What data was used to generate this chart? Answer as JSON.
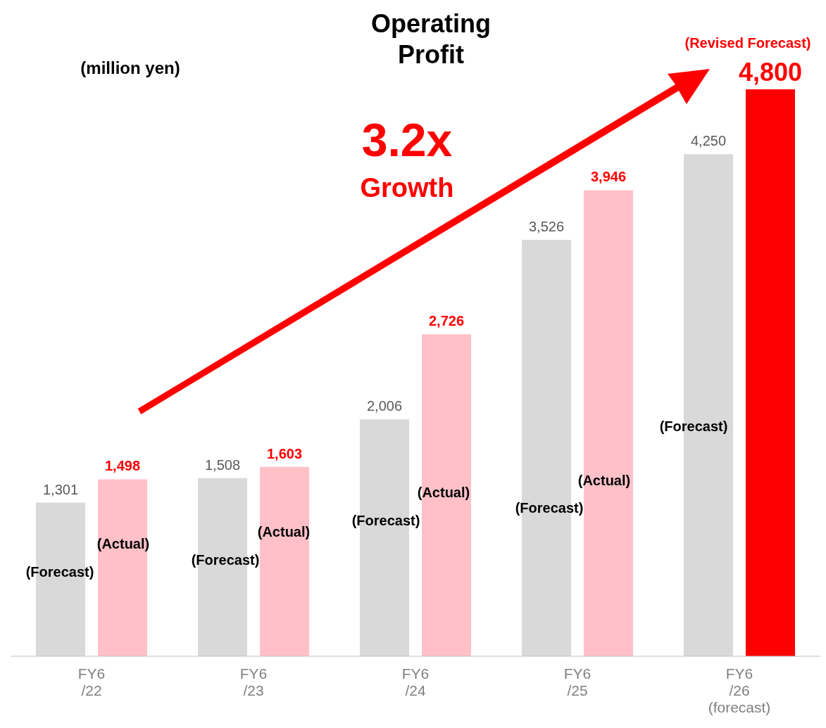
{
  "chart_data": {
    "type": "bar",
    "title": "Operating Profit",
    "categories": [
      "FY6\n/22",
      "FY6\n/23",
      "FY6\n/24",
      "FY6\n/25",
      "FY6\n/26\n(forecast)"
    ],
    "series": [
      {
        "colors": [
          "#d9d9d9",
          "#d9d9d9",
          "#d9d9d9",
          "#d9d9d9",
          "#d9d9d9"
        ],
        "values": [
          1301,
          1508,
          2006,
          3526,
          4250
        ],
        "value_labels": [
          "1,301",
          "1,508",
          "2,006",
          "3,526",
          "4,250"
        ]
      },
      {
        "colors": [
          "#ffc0c8",
          "#ffc0c8",
          "#ffc0c8",
          "#ffc0c8",
          "#ff0000"
        ],
        "values": [
          1498,
          1603,
          2726,
          3946,
          4800
        ],
        "value_labels": [
          "1,498",
          "1,603",
          "2,726",
          "3,946",
          "4,800"
        ]
      }
    ],
    "annotations": [
      "(Forecast)",
      "(Actual)",
      "(Forecast)",
      "(Actual)",
      "(Forecast)",
      "(Actual)",
      "(Forecast)",
      "(Actual)",
      "(Forecast)",
      "(Revised Forecast)",
      "3.2x",
      "Growth",
      "(million yen)"
    ]
  }
}
